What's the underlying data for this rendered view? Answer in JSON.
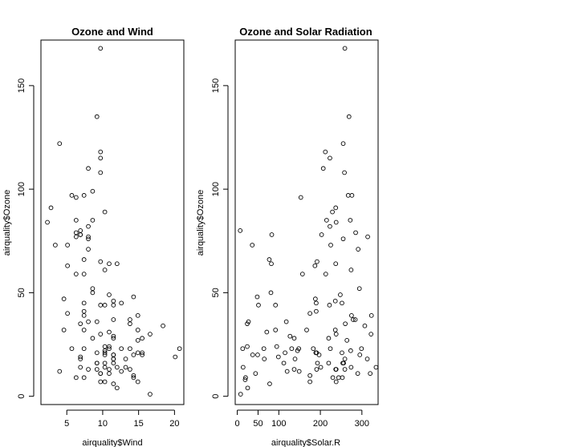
{
  "chart_data": [
    {
      "type": "scatter",
      "title": "Ozone and Wind",
      "xlabel": "airquality$Wind",
      "ylabel": "airquality$Ozone",
      "xlim": [
        1.4,
        21.3
      ],
      "ylim": [
        -4,
        172
      ],
      "xticks": [
        5,
        10,
        15,
        20
      ],
      "yticks": [
        0,
        50,
        100,
        150
      ],
      "points": [
        [
          7.4,
          41
        ],
        [
          8.0,
          36
        ],
        [
          12.6,
          12
        ],
        [
          11.5,
          18
        ],
        [
          8.6,
          28
        ],
        [
          13.8,
          23
        ],
        [
          20.1,
          19
        ],
        [
          8.6,
          99
        ],
        [
          6.9,
          19
        ],
        [
          9.7,
          7
        ],
        [
          9.2,
          16
        ],
        [
          10.9,
          11
        ],
        [
          13.2,
          14
        ],
        [
          11.5,
          18
        ],
        [
          12.0,
          14
        ],
        [
          18.4,
          34
        ],
        [
          11.5,
          6
        ],
        [
          9.7,
          30
        ],
        [
          9.7,
          11
        ],
        [
          16.6,
          1
        ],
        [
          9.7,
          11
        ],
        [
          12.0,
          4
        ],
        [
          14.9,
          32
        ],
        [
          5.7,
          23
        ],
        [
          7.4,
          45
        ],
        [
          9.7,
          115
        ],
        [
          13.8,
          37
        ],
        [
          11.5,
          29
        ],
        [
          8.0,
          71
        ],
        [
          14.9,
          39
        ],
        [
          20.7,
          23
        ],
        [
          9.2,
          21
        ],
        [
          11.5,
          37
        ],
        [
          10.3,
          20
        ],
        [
          4.0,
          12
        ],
        [
          9.2,
          13
        ],
        [
          9.2,
          135
        ],
        [
          10.9,
          49
        ],
        [
          4.6,
          32
        ],
        [
          10.9,
          64
        ],
        [
          5.1,
          40
        ],
        [
          6.3,
          77
        ],
        [
          5.7,
          97
        ],
        [
          7.4,
          97
        ],
        [
          8.6,
          85
        ],
        [
          14.3,
          10
        ],
        [
          14.9,
          27
        ],
        [
          14.9,
          7
        ],
        [
          14.3,
          48
        ],
        [
          6.9,
          35
        ],
        [
          10.3,
          61
        ],
        [
          6.3,
          79
        ],
        [
          5.1,
          63
        ],
        [
          11.5,
          16
        ],
        [
          6.9,
          80
        ],
        [
          9.7,
          108
        ],
        [
          11.5,
          20
        ],
        [
          8.6,
          52
        ],
        [
          8.0,
          82
        ],
        [
          8.6,
          50
        ],
        [
          12.0,
          64
        ],
        [
          7.4,
          59
        ],
        [
          7.4,
          39
        ],
        [
          7.4,
          9
        ],
        [
          9.2,
          16
        ],
        [
          6.9,
          78
        ],
        [
          13.8,
          35
        ],
        [
          7.4,
          66
        ],
        [
          4.0,
          122
        ],
        [
          10.3,
          89
        ],
        [
          8.0,
          110
        ],
        [
          11.5,
          44
        ],
        [
          11.5,
          28
        ],
        [
          9.7,
          65
        ],
        [
          10.3,
          22
        ],
        [
          6.3,
          59
        ],
        [
          7.4,
          23
        ],
        [
          10.9,
          31
        ],
        [
          10.3,
          44
        ],
        [
          15.5,
          21
        ],
        [
          14.3,
          9
        ],
        [
          12.6,
          45
        ],
        [
          9.7,
          168
        ],
        [
          3.4,
          73
        ],
        [
          8.0,
          76
        ],
        [
          9.7,
          118
        ],
        [
          2.3,
          84
        ],
        [
          6.3,
          85
        ],
        [
          6.3,
          96
        ],
        [
          6.9,
          78
        ],
        [
          5.1,
          73
        ],
        [
          2.8,
          91
        ],
        [
          4.6,
          47
        ],
        [
          7.4,
          32
        ],
        [
          15.5,
          20
        ],
        [
          10.9,
          23
        ],
        [
          10.3,
          21
        ],
        [
          10.9,
          24
        ],
        [
          9.7,
          44
        ],
        [
          14.9,
          21
        ],
        [
          15.5,
          28
        ],
        [
          6.3,
          9
        ],
        [
          10.9,
          13
        ],
        [
          11.5,
          46
        ],
        [
          6.9,
          18
        ],
        [
          13.8,
          13
        ],
        [
          10.3,
          24
        ],
        [
          10.3,
          16
        ],
        [
          8.0,
          13
        ],
        [
          12.6,
          23
        ],
        [
          9.2,
          36
        ],
        [
          10.3,
          7
        ],
        [
          10.3,
          14
        ],
        [
          16.6,
          30
        ],
        [
          6.9,
          14
        ],
        [
          13.2,
          18
        ],
        [
          14.3,
          20
        ],
        [
          8.0,
          77
        ],
        [
          11.5,
          20
        ]
      ]
    },
    {
      "type": "scatter",
      "title": "Ozone and Solar Radiation",
      "xlabel": "airquality$Solar.R",
      "ylabel": "airquality$Ozone",
      "xlim": [
        -5,
        339
      ],
      "ylim": [
        -4,
        172
      ],
      "xticks": [
        0,
        50,
        100,
        200,
        300
      ],
      "yticks": [
        0,
        50,
        100,
        150
      ],
      "points": [
        [
          190,
          41
        ],
        [
          118,
          36
        ],
        [
          149,
          12
        ],
        [
          313,
          18
        ],
        [
          299,
          23
        ],
        [
          99,
          19
        ],
        [
          19,
          8
        ],
        [
          256,
          16
        ],
        [
          290,
          11
        ],
        [
          274,
          14
        ],
        [
          65,
          18
        ],
        [
          334,
          14
        ],
        [
          307,
          34
        ],
        [
          78,
          6
        ],
        [
          322,
          30
        ],
        [
          44,
          11
        ],
        [
          8,
          1
        ],
        [
          320,
          11
        ],
        [
          25,
          4
        ],
        [
          92,
          32
        ],
        [
          13,
          23
        ],
        [
          252,
          45
        ],
        [
          223,
          115
        ],
        [
          279,
          37
        ],
        [
          127,
          29
        ],
        [
          291,
          71
        ],
        [
          323,
          39
        ],
        [
          148,
          23
        ],
        [
          191,
          21
        ],
        [
          284,
          37
        ],
        [
          37,
          20
        ],
        [
          120,
          12
        ],
        [
          137,
          13
        ],
        [
          269,
          135
        ],
        [
          248,
          49
        ],
        [
          236,
          32
        ],
        [
          237,
          64
        ],
        [
          175,
          40
        ],
        [
          314,
          77
        ],
        [
          276,
          97
        ],
        [
          267,
          97
        ],
        [
          272,
          85
        ],
        [
          175,
          10
        ],
        [
          264,
          27
        ],
        [
          175,
          7
        ],
        [
          48,
          48
        ],
        [
          260,
          35
        ],
        [
          274,
          61
        ],
        [
          285,
          79
        ],
        [
          187,
          63
        ],
        [
          220,
          16
        ],
        [
          7,
          80
        ],
        [
          258,
          108
        ],
        [
          295,
          20
        ],
        [
          294,
          52
        ],
        [
          223,
          82
        ],
        [
          81,
          50
        ],
        [
          82,
          64
        ],
        [
          213,
          59
        ],
        [
          275,
          39
        ],
        [
          253,
          9
        ],
        [
          254,
          16
        ],
        [
          83,
          78
        ],
        [
          24,
          35
        ],
        [
          77,
          66
        ],
        [
          255,
          122
        ],
        [
          229,
          89
        ],
        [
          207,
          110
        ],
        [
          222,
          44
        ],
        [
          137,
          28
        ],
        [
          192,
          65
        ],
        [
          273,
          22
        ],
        [
          157,
          59
        ],
        [
          64,
          23
        ],
        [
          71,
          31
        ],
        [
          51,
          44
        ],
        [
          115,
          21
        ],
        [
          244,
          9
        ],
        [
          190,
          45
        ],
        [
          259,
          168
        ],
        [
          36,
          73
        ],
        [
          255,
          76
        ],
        [
          212,
          118
        ],
        [
          238,
          84
        ],
        [
          215,
          85
        ],
        [
          153,
          96
        ],
        [
          203,
          78
        ],
        [
          225,
          73
        ],
        [
          237,
          91
        ],
        [
          188,
          47
        ],
        [
          167,
          32
        ],
        [
          197,
          20
        ],
        [
          183,
          23
        ],
        [
          189,
          21
        ],
        [
          95,
          24
        ],
        [
          92,
          44
        ],
        [
          252,
          21
        ],
        [
          220,
          28
        ],
        [
          230,
          9
        ],
        [
          259,
          13
        ],
        [
          236,
          46
        ],
        [
          259,
          18
        ],
        [
          238,
          13
        ],
        [
          24,
          24
        ],
        [
          112,
          16
        ],
        [
          237,
          13
        ],
        [
          224,
          23
        ],
        [
          27,
          36
        ],
        [
          238,
          7
        ],
        [
          201,
          14
        ],
        [
          238,
          30
        ],
        [
          14,
          14
        ],
        [
          139,
          18
        ],
        [
          49,
          20
        ],
        [
          20,
          9
        ],
        [
          193,
          16
        ],
        [
          145,
          22
        ],
        [
          191,
          13
        ],
        [
          131,
          23
        ]
      ]
    }
  ]
}
